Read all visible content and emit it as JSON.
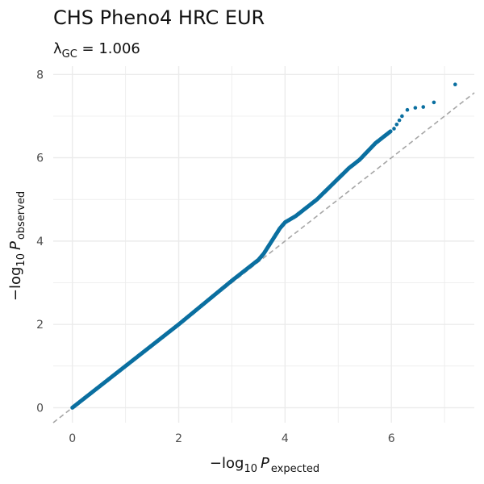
{
  "chart_data": {
    "type": "scatter",
    "title": "CHS Pheno4 HRC EUR",
    "subtitle": {
      "symbol": "λ",
      "subscript": "GC",
      "rest": " = 1.006"
    },
    "xlabel": {
      "prefix": "−log",
      "base": "10",
      "var": "P",
      "subscript": "expected"
    },
    "ylabel": {
      "prefix": "−log",
      "base": "10",
      "var": "P",
      "subscript": "observed"
    },
    "xlim": [
      -0.36,
      7.56
    ],
    "ylim": [
      -0.36,
      8.2
    ],
    "xticks": [
      0,
      2,
      4,
      6
    ],
    "yticks": [
      0,
      2,
      4,
      6,
      8
    ],
    "grid": true,
    "reference_line": "y = x",
    "point_color": "#0a6fa0",
    "line_color": "#a6a6a6",
    "curve": [
      [
        0.0,
        0.0
      ],
      [
        1.0,
        1.0
      ],
      [
        2.0,
        2.0
      ],
      [
        3.0,
        3.05
      ],
      [
        3.5,
        3.55
      ],
      [
        3.6,
        3.7
      ],
      [
        3.8,
        4.1
      ],
      [
        3.9,
        4.3
      ],
      [
        4.0,
        4.45
      ],
      [
        4.2,
        4.6
      ],
      [
        4.4,
        4.8
      ],
      [
        4.6,
        5.0
      ],
      [
        4.8,
        5.25
      ],
      [
        5.0,
        5.5
      ],
      [
        5.2,
        5.75
      ],
      [
        5.4,
        5.95
      ],
      [
        5.55,
        6.15
      ],
      [
        5.7,
        6.35
      ],
      [
        5.85,
        6.5
      ],
      [
        6.0,
        6.65
      ]
    ],
    "tail_points": [
      [
        6.05,
        6.7
      ],
      [
        6.1,
        6.8
      ],
      [
        6.15,
        6.9
      ],
      [
        6.2,
        7.0
      ],
      [
        6.3,
        7.15
      ],
      [
        6.45,
        7.2
      ],
      [
        6.6,
        7.22
      ],
      [
        6.8,
        7.33
      ],
      [
        7.2,
        7.76
      ]
    ]
  }
}
